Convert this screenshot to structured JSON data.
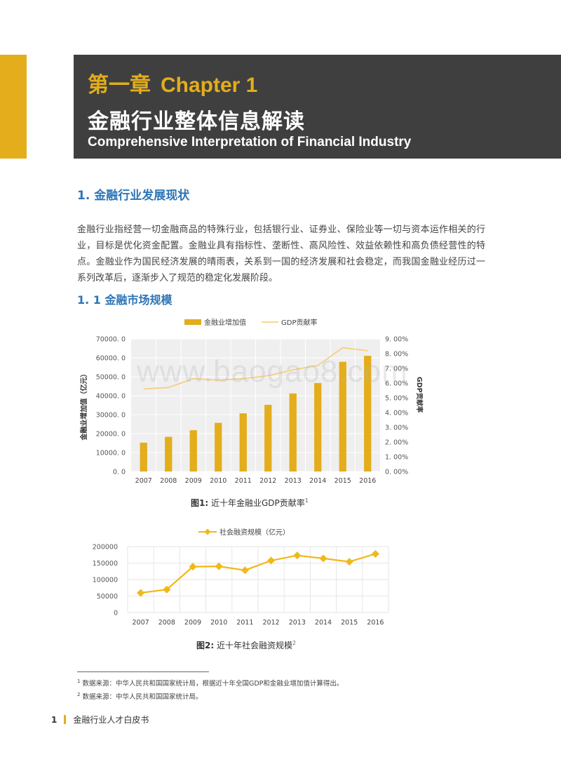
{
  "header": {
    "chapter_cn": "第一章",
    "chapter_en": "Chapter 1",
    "title_cn": "金融行业整体信息解读",
    "title_en": "Comprehensive Interpretation of Financial Industry"
  },
  "section1": {
    "title": "1. 金融行业发展现状"
  },
  "paragraph": "金融行业指经营一切金融商品的特殊行业，包括银行业、证券业、保险业等一切与资本运作相关的行业，目标是优化资金配置。金融业具有指标性、垄断性、高风险性、效益依赖性和高负债经营性的特点。金融业作为国民经济发展的晴雨表，关系到一国的经济发展和社会稳定，而我国金融业经历过一系列改革后，逐渐步入了规范的稳定化发展阶段。",
  "section11": {
    "title": "1. 1 金融市场规模"
  },
  "watermark": "www.baogao8.com",
  "chart_data": [
    {
      "type": "bar",
      "categories": [
        "2007",
        "2008",
        "2009",
        "2010",
        "2011",
        "2012",
        "2013",
        "2014",
        "2015",
        "2016"
      ],
      "series": [
        {
          "name": "金融业增加值",
          "type": "bar",
          "axis": "left",
          "values": [
            15200,
            18300,
            21800,
            25700,
            30700,
            35200,
            41200,
            46700,
            57900,
            61100
          ]
        },
        {
          "name": "GDP贡献率",
          "type": "line",
          "axis": "right",
          "values": [
            5.6,
            5.7,
            6.3,
            6.2,
            6.3,
            6.5,
            6.9,
            7.2,
            8.4,
            8.2
          ]
        }
      ],
      "ylabel": "金融业增加值（亿元）",
      "y2label": "GDP贡献率",
      "ylim": [
        0,
        70000
      ],
      "y2lim": [
        0,
        9
      ],
      "yticks": [
        "0. 0",
        "10000. 0",
        "20000. 0",
        "30000. 0",
        "40000. 0",
        "50000. 0",
        "60000. 0",
        "70000. 0"
      ],
      "y2ticks": [
        "0. 00%",
        "1. 00%",
        "2. 00%",
        "3. 00%",
        "4. 00%",
        "5. 00%",
        "6. 00%",
        "7. 00%",
        "8. 00%",
        "9. 00%"
      ],
      "grid": true,
      "legend": "top",
      "colors": {
        "bar": "#E3AD1C",
        "line": "#F6CF82"
      }
    },
    {
      "type": "line",
      "categories": [
        "2007",
        "2008",
        "2009",
        "2010",
        "2011",
        "2012",
        "2013",
        "2014",
        "2015",
        "2016"
      ],
      "series": [
        {
          "name": "社会融资规模（亿元）",
          "values": [
            59700,
            69800,
            139100,
            140200,
            128300,
            157600,
            173200,
            164100,
            154100,
            178000
          ]
        }
      ],
      "ylim": [
        0,
        200000
      ],
      "yticks": [
        "0",
        "50000",
        "100000",
        "150000",
        "200000"
      ],
      "grid": true,
      "legend": "top",
      "colors": {
        "line": "#F1B818"
      }
    }
  ],
  "captions": {
    "fig1_label": "图1:",
    "fig1_text": " 近十年金融业GDP贡献率",
    "fig1_note": "1",
    "fig2_label": "图2:",
    "fig2_text": " 近十年社会融资规模",
    "fig2_note": "2"
  },
  "footnotes": [
    {
      "num": "1",
      "text": " 数据来源：中华人民共和国国家统计局，根据近十年全国GDP和金融业增加值计算得出。"
    },
    {
      "num": "2",
      "text": " 数据来源：中华人民共和国国家统计局。"
    }
  ],
  "footer": {
    "page": "1",
    "title": "金融行业人才白皮书"
  }
}
